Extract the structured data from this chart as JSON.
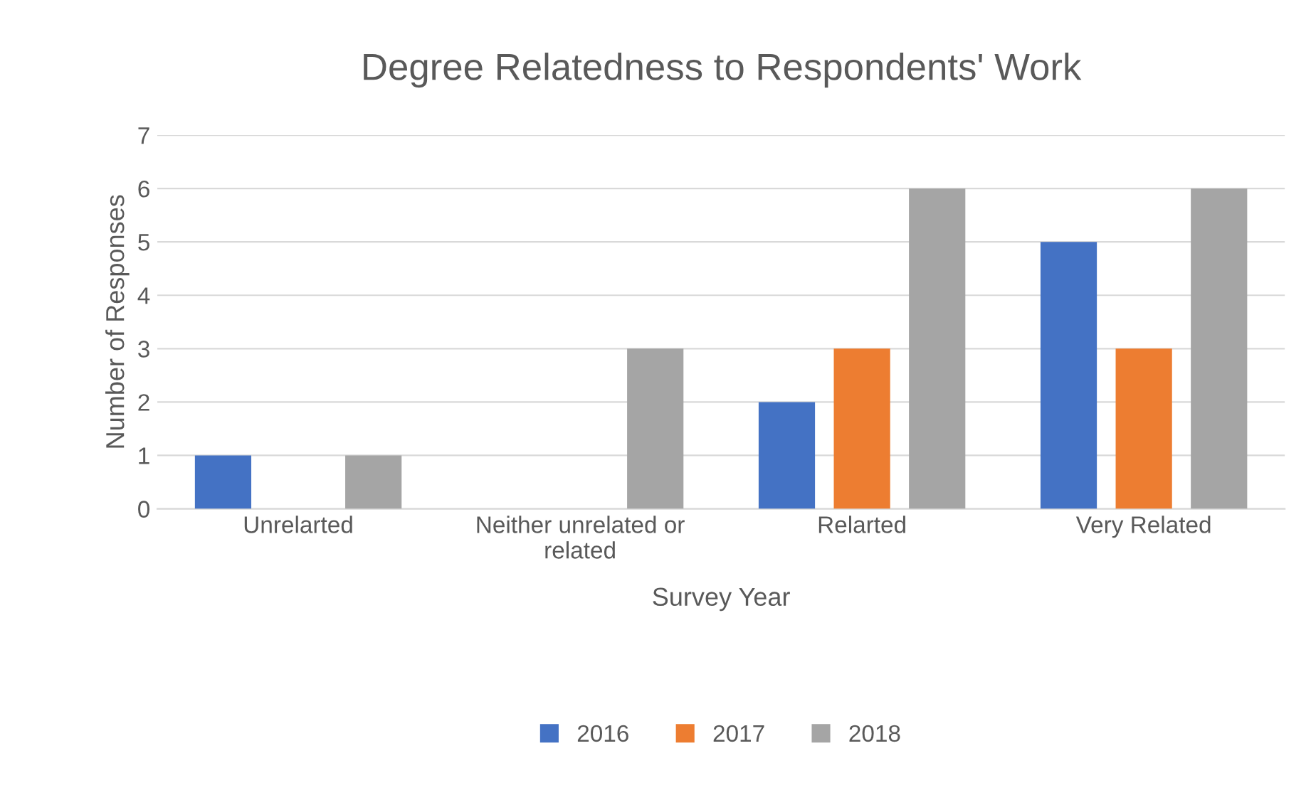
{
  "chart_data": {
    "type": "bar",
    "title": "Degree Relatedness to Respondents' Work",
    "xlabel": "Survey Year",
    "ylabel": "Number of Responses",
    "categories": [
      "Unrelarted",
      "Neither unrelated or related",
      "Relarted",
      "Very Related"
    ],
    "series": [
      {
        "name": "2016",
        "color": "#4472c4",
        "values": [
          1,
          0,
          2,
          5
        ]
      },
      {
        "name": "2017",
        "color": "#ed7d31",
        "values": [
          0,
          0,
          3,
          3
        ]
      },
      {
        "name": "2018",
        "color": "#a5a5a5",
        "values": [
          1,
          3,
          6,
          6
        ]
      }
    ],
    "ylim": [
      0,
      7
    ],
    "yticks": [
      0,
      1,
      2,
      3,
      4,
      5,
      6,
      7
    ],
    "grid": "y",
    "legend": "bottom"
  }
}
